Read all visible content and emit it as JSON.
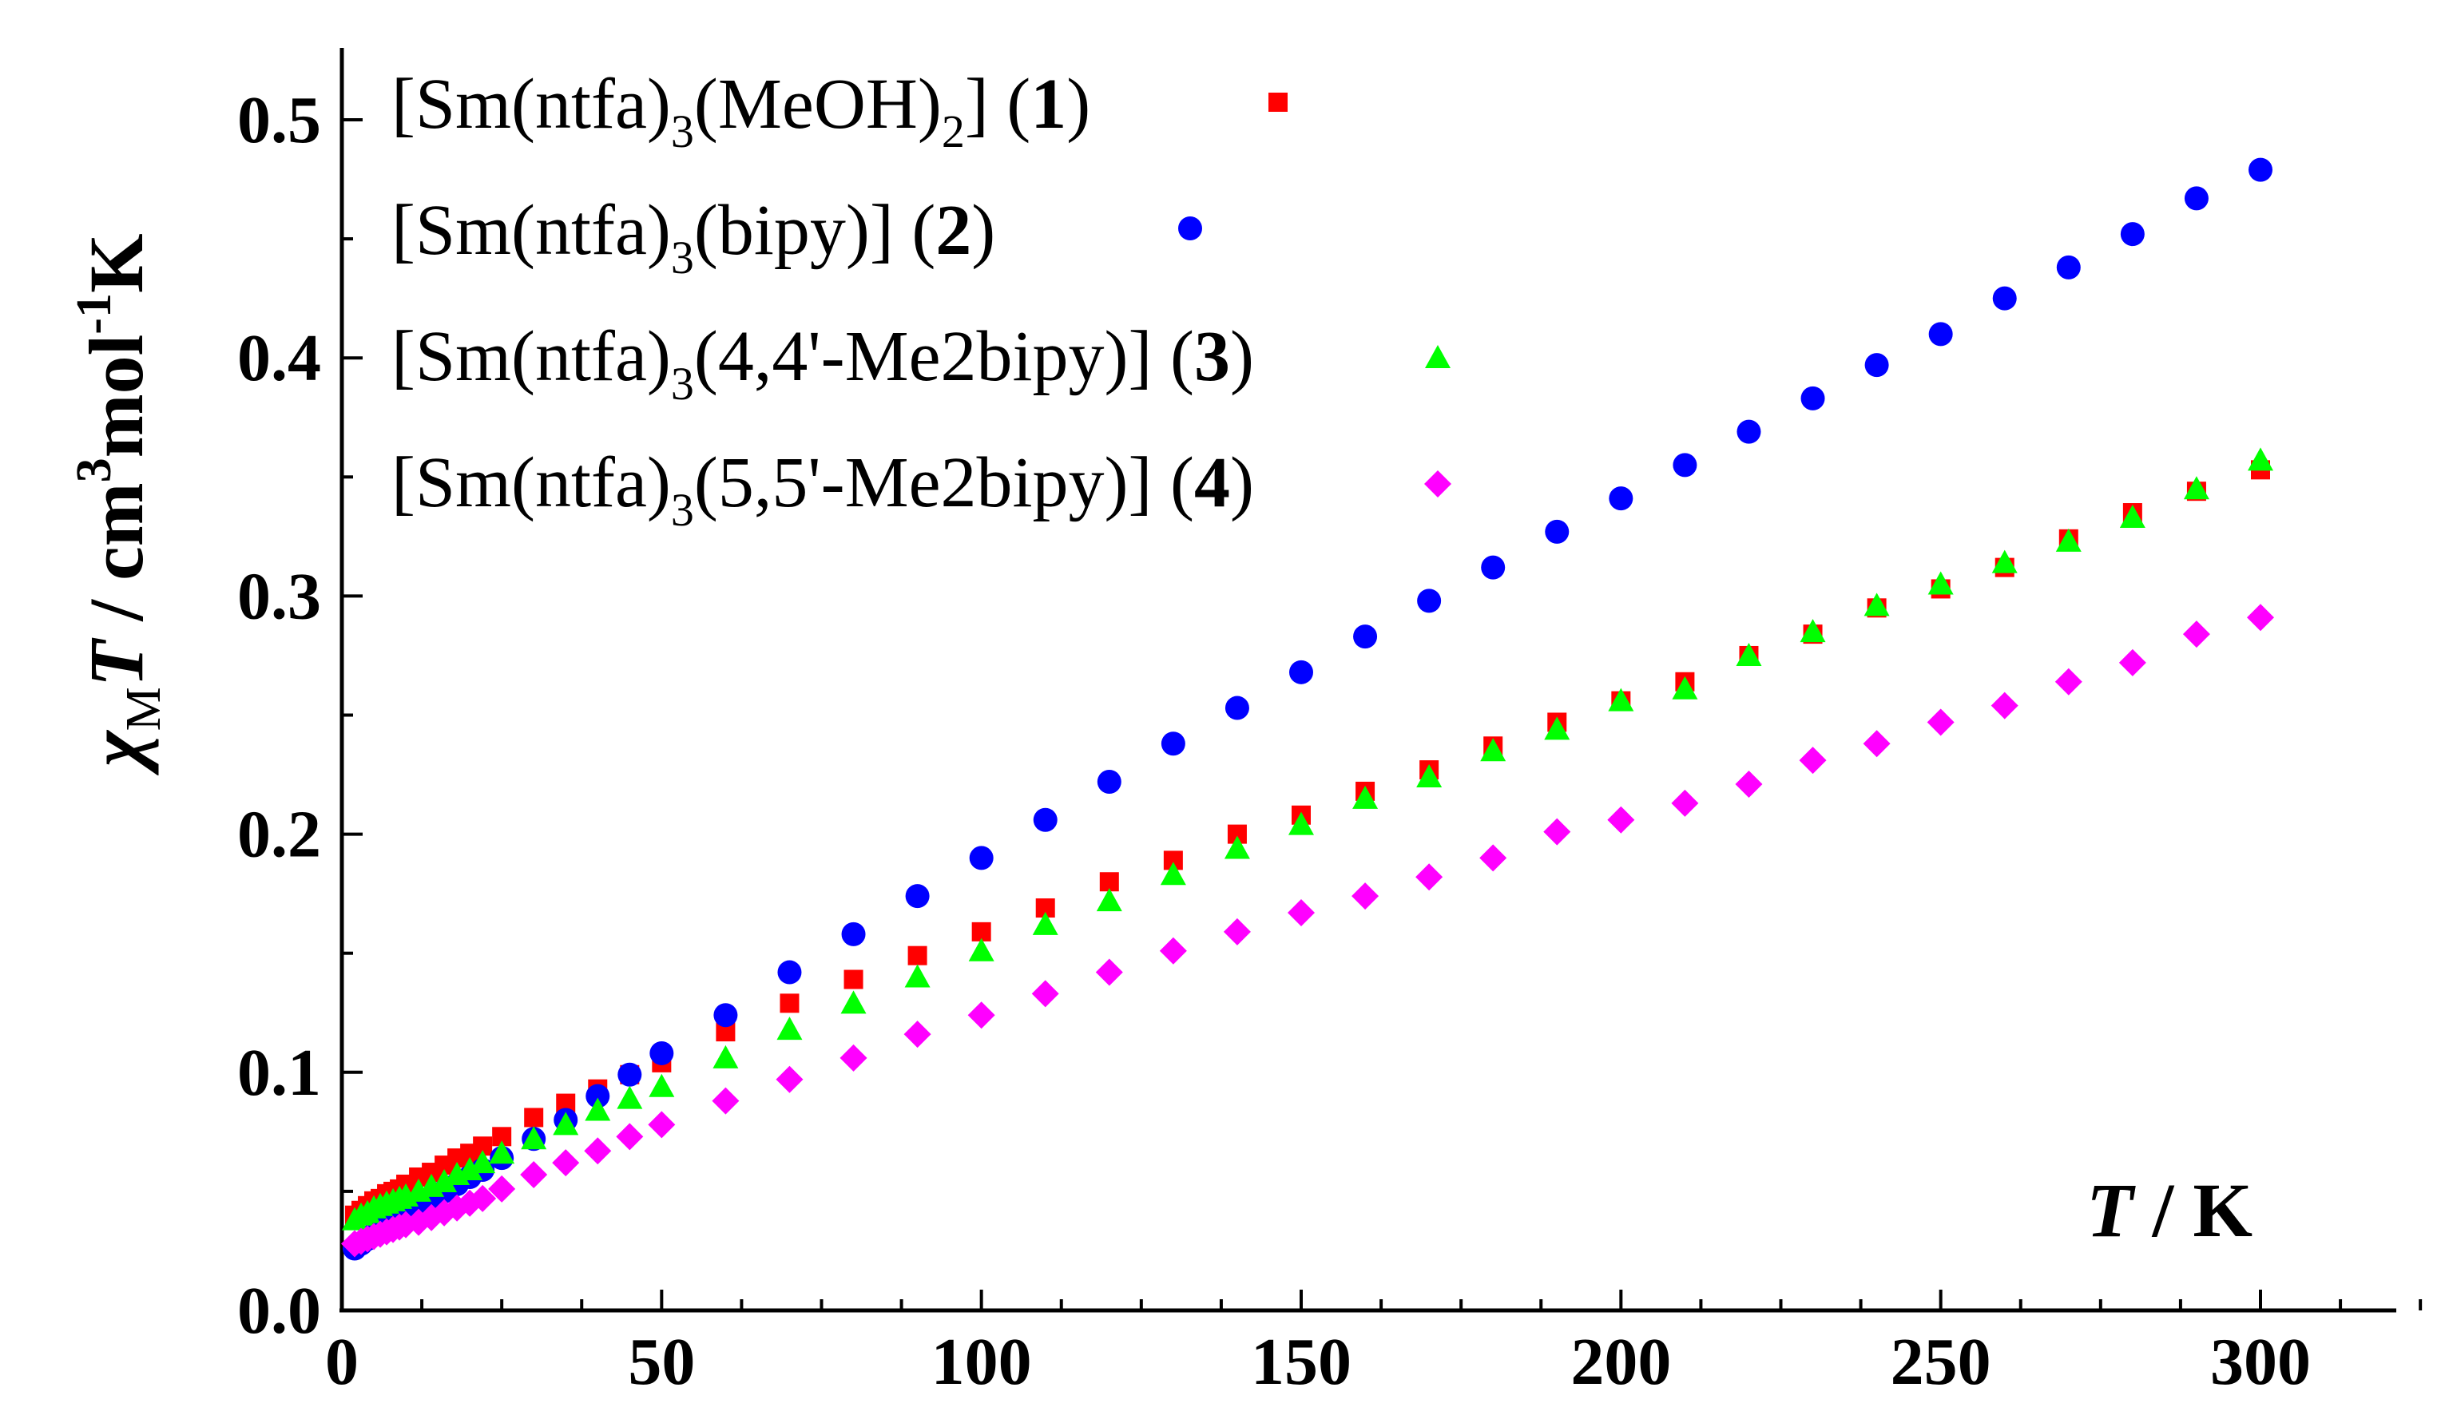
{
  "chart_data": {
    "type": "scatter",
    "xlabel": {
      "var": "T",
      "rest": " / K"
    },
    "ylabel": {
      "chi": "χ",
      "chi_sub": "M",
      "var": "T",
      "unit": " / cm",
      "exp1": "3",
      "unit2": "mol",
      "exp2": "-1",
      "unit3": "K"
    },
    "xlim": [
      0,
      330
    ],
    "ylim": [
      0,
      0.525
    ],
    "x_ticks": [
      0,
      50,
      100,
      150,
      200,
      250,
      300
    ],
    "x_tick_labels": [
      "0",
      "50",
      "100",
      "150",
      "200",
      "250",
      "300"
    ],
    "y_ticks": [
      0.0,
      0.1,
      0.2,
      0.3,
      0.4,
      0.5
    ],
    "y_tick_labels": [
      "0.0",
      "0.1",
      "0.2",
      "0.3",
      "0.4",
      "0.5"
    ],
    "legend_position": "top-left",
    "series": [
      {
        "name": "[Sm(ntfa)3(MeOH)2] (1)",
        "legend": {
          "a": "[Sm(ntfa)",
          "s1": "3",
          "b": "(MeOH)",
          "s2": "2",
          "c": "] (",
          "num": "1",
          "d": ")"
        },
        "marker": "square",
        "color": "#ff0000",
        "x": [
          2,
          3,
          4,
          5,
          6,
          7,
          8,
          9,
          10,
          12,
          14,
          16,
          18,
          20,
          22,
          25,
          30,
          35,
          40,
          45,
          50,
          60,
          70,
          80,
          90,
          100,
          110,
          120,
          130,
          140,
          150,
          160,
          170,
          180,
          190,
          200,
          210,
          220,
          230,
          240,
          250,
          260,
          270,
          280,
          290,
          300
        ],
        "values": [
          0.04,
          0.042,
          0.044,
          0.046,
          0.047,
          0.049,
          0.05,
          0.051,
          0.053,
          0.056,
          0.058,
          0.061,
          0.064,
          0.066,
          0.069,
          0.073,
          0.081,
          0.087,
          0.093,
          0.099,
          0.104,
          0.117,
          0.129,
          0.139,
          0.149,
          0.159,
          0.169,
          0.18,
          0.189,
          0.2,
          0.208,
          0.218,
          0.227,
          0.237,
          0.247,
          0.256,
          0.264,
          0.275,
          0.284,
          0.295,
          0.303,
          0.312,
          0.324,
          0.335,
          0.344,
          0.353
        ]
      },
      {
        "name": "[Sm(ntfa)3(bipy)] (2)",
        "legend": {
          "a": "[Sm(ntfa)",
          "s1": "3",
          "b": "(bipy)]  (",
          "num": "2",
          "d": ")"
        },
        "marker": "circle",
        "color": "#0000ff",
        "x": [
          2,
          3,
          4,
          5,
          6,
          7,
          8,
          9,
          10,
          12,
          14,
          16,
          18,
          20,
          22,
          25,
          30,
          35,
          40,
          45,
          50,
          60,
          70,
          80,
          90,
          100,
          110,
          120,
          130,
          140,
          150,
          160,
          170,
          180,
          190,
          200,
          210,
          220,
          230,
          240,
          250,
          260,
          270,
          280,
          290,
          300
        ],
        "values": [
          0.026,
          0.028,
          0.03,
          0.032,
          0.034,
          0.036,
          0.038,
          0.039,
          0.041,
          0.044,
          0.047,
          0.05,
          0.053,
          0.056,
          0.059,
          0.064,
          0.072,
          0.08,
          0.09,
          0.099,
          0.108,
          0.124,
          0.142,
          0.158,
          0.174,
          0.19,
          0.206,
          0.222,
          0.238,
          0.253,
          0.268,
          0.283,
          0.298,
          0.312,
          0.327,
          0.341,
          0.355,
          0.369,
          0.383,
          0.397,
          0.41,
          0.425,
          0.438,
          0.452,
          0.467,
          0.479
        ]
      },
      {
        "name": "[Sm(ntfa)3(4,4'-Me2bipy)] (3)",
        "legend": {
          "a": "[Sm(ntfa)",
          "s1": "3",
          "b": "(4,4'-Me2bipy)] (",
          "num": "3",
          "d": ")"
        },
        "marker": "triangle",
        "color": "#00ff00",
        "x": [
          2,
          3,
          4,
          5,
          6,
          7,
          8,
          9,
          10,
          12,
          14,
          16,
          18,
          20,
          22,
          25,
          30,
          35,
          40,
          45,
          50,
          60,
          70,
          80,
          90,
          100,
          110,
          120,
          130,
          140,
          150,
          160,
          170,
          180,
          190,
          200,
          210,
          220,
          230,
          240,
          250,
          260,
          270,
          280,
          290,
          300
        ],
        "values": [
          0.038,
          0.04,
          0.041,
          0.043,
          0.044,
          0.045,
          0.046,
          0.047,
          0.048,
          0.05,
          0.052,
          0.054,
          0.057,
          0.059,
          0.062,
          0.066,
          0.072,
          0.078,
          0.084,
          0.089,
          0.094,
          0.106,
          0.118,
          0.129,
          0.14,
          0.151,
          0.162,
          0.172,
          0.183,
          0.194,
          0.204,
          0.215,
          0.224,
          0.235,
          0.244,
          0.256,
          0.261,
          0.275,
          0.285,
          0.296,
          0.305,
          0.314,
          0.323,
          0.333,
          0.345,
          0.357
        ]
      },
      {
        "name": "[Sm(ntfa)3(5,5'-Me2bipy)] (4)",
        "legend": {
          "a": "[Sm(ntfa)",
          "s1": "3",
          "b": "(5,5'-Me2bipy)] (",
          "num": "4",
          "d": ")"
        },
        "marker": "diamond",
        "color": "#ff00ff",
        "x": [
          2,
          3,
          4,
          5,
          6,
          7,
          8,
          9,
          10,
          12,
          14,
          16,
          18,
          20,
          22,
          25,
          30,
          35,
          40,
          45,
          50,
          60,
          70,
          80,
          90,
          100,
          110,
          120,
          130,
          140,
          150,
          160,
          170,
          180,
          190,
          200,
          210,
          220,
          230,
          240,
          250,
          260,
          270,
          280,
          290,
          300
        ],
        "values": [
          0.028,
          0.029,
          0.03,
          0.031,
          0.032,
          0.033,
          0.034,
          0.035,
          0.036,
          0.037,
          0.039,
          0.041,
          0.043,
          0.045,
          0.047,
          0.051,
          0.057,
          0.062,
          0.067,
          0.073,
          0.078,
          0.088,
          0.097,
          0.106,
          0.116,
          0.124,
          0.133,
          0.142,
          0.151,
          0.159,
          0.167,
          0.174,
          0.182,
          0.19,
          0.201,
          0.206,
          0.213,
          0.221,
          0.231,
          0.238,
          0.247,
          0.254,
          0.264,
          0.272,
          0.284,
          0.291
        ]
      }
    ]
  }
}
